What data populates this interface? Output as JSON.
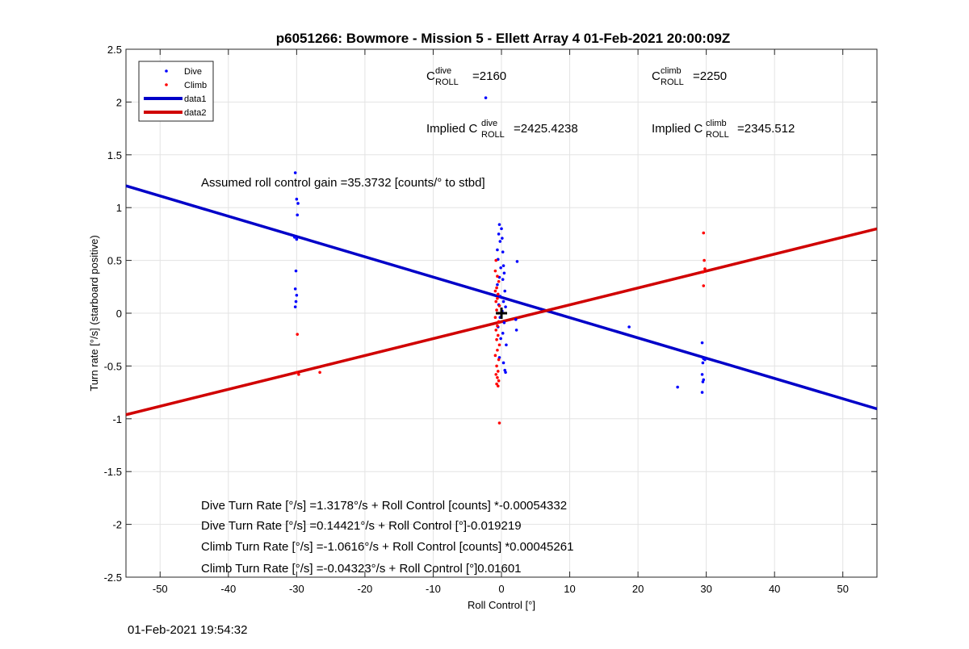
{
  "chart_data": {
    "type": "scatter",
    "title": "p6051266: Bowmore - Mission 5 - Ellett Array 4 01-Feb-2021 20:00:09Z",
    "xlabel": "Roll Control [°]",
    "ylabel": "Turn rate [°/s] (starboard positive)",
    "xlim": [
      -55,
      55
    ],
    "ylim": [
      -2.5,
      2.5
    ],
    "xticks": [
      -50,
      -40,
      -30,
      -20,
      -10,
      0,
      10,
      20,
      30,
      40,
      50
    ],
    "yticks": [
      2.5,
      2,
      1.5,
      1,
      0.5,
      0,
      -0.5,
      -1,
      -1.5,
      -2,
      -2.5
    ],
    "ytick_labels": [
      "2.5",
      "2",
      "1.5",
      "1",
      "0.5",
      "0",
      "-0.5",
      "-1",
      "-1.5",
      "-2",
      "-2.5"
    ],
    "grid": true,
    "legend_position": "top-left",
    "legend": [
      "Dive",
      "Climb",
      "data1",
      "data2"
    ],
    "series": [
      {
        "name": "Dive",
        "kind": "points",
        "color": "#0000ff",
        "points": [
          [
            -30.2,
            1.33
          ],
          [
            -30.0,
            1.08
          ],
          [
            -29.8,
            1.04
          ],
          [
            -29.9,
            0.93
          ],
          [
            -30.3,
            0.72
          ],
          [
            -30.0,
            0.7
          ],
          [
            -30.1,
            0.4
          ],
          [
            -30.2,
            0.23
          ],
          [
            -30.0,
            0.17
          ],
          [
            -30.1,
            0.11
          ],
          [
            -30.2,
            0.06
          ],
          [
            -2.3,
            2.04
          ],
          [
            -0.3,
            0.84
          ],
          [
            0.0,
            0.8
          ],
          [
            -0.4,
            0.75
          ],
          [
            0.1,
            0.71
          ],
          [
            -0.2,
            0.68
          ],
          [
            -0.6,
            0.6
          ],
          [
            0.2,
            0.58
          ],
          [
            -0.5,
            0.51
          ],
          [
            0.3,
            0.45
          ],
          [
            2.3,
            0.49
          ],
          [
            -0.1,
            0.43
          ],
          [
            0.4,
            0.38
          ],
          [
            -0.3,
            0.34
          ],
          [
            0.2,
            0.32
          ],
          [
            -0.6,
            0.27
          ],
          [
            0.5,
            0.21
          ],
          [
            -0.2,
            0.16
          ],
          [
            0.3,
            0.11
          ],
          [
            -0.4,
            0.08
          ],
          [
            0.6,
            0.06
          ],
          [
            0.1,
            0.02
          ],
          [
            -0.2,
            -0.04
          ],
          [
            0.4,
            -0.09
          ],
          [
            -0.5,
            -0.13
          ],
          [
            0.2,
            -0.19
          ],
          [
            -0.1,
            -0.24
          ],
          [
            0.7,
            -0.3
          ],
          [
            -0.3,
            -0.42
          ],
          [
            0.3,
            -0.47
          ],
          [
            0.5,
            -0.54
          ],
          [
            0.6,
            -0.56
          ],
          [
            2.2,
            -0.16
          ],
          [
            2.1,
            -0.06
          ],
          [
            18.7,
            -0.13
          ],
          [
            25.8,
            -0.7
          ],
          [
            29.4,
            -0.28
          ],
          [
            29.6,
            -0.43
          ],
          [
            29.5,
            -0.47
          ],
          [
            29.4,
            -0.58
          ],
          [
            29.6,
            -0.63
          ],
          [
            29.5,
            -0.65
          ],
          [
            29.4,
            -0.75
          ],
          [
            29.8,
            -0.44
          ]
        ]
      },
      {
        "name": "Climb",
        "kind": "points",
        "color": "#ff0000",
        "points": [
          [
            -29.9,
            -0.2
          ],
          [
            -30.0,
            -0.56
          ],
          [
            -29.7,
            -0.58
          ],
          [
            -26.6,
            -0.56
          ],
          [
            -0.8,
            0.5
          ],
          [
            -0.9,
            0.4
          ],
          [
            -0.6,
            0.35
          ],
          [
            -0.4,
            0.3
          ],
          [
            -0.7,
            0.24
          ],
          [
            -0.9,
            0.21
          ],
          [
            -0.5,
            0.18
          ],
          [
            -0.6,
            0.14
          ],
          [
            -0.8,
            0.11
          ],
          [
            -0.3,
            0.07
          ],
          [
            -0.7,
            0.03
          ],
          [
            -0.5,
            0.0
          ],
          [
            -0.9,
            -0.04
          ],
          [
            -0.4,
            -0.08
          ],
          [
            -0.6,
            -0.12
          ],
          [
            -0.8,
            -0.16
          ],
          [
            -0.5,
            -0.21
          ],
          [
            -0.7,
            -0.25
          ],
          [
            -0.3,
            -0.3
          ],
          [
            -0.6,
            -0.35
          ],
          [
            -0.9,
            -0.4
          ],
          [
            -0.4,
            -0.44
          ],
          [
            -0.7,
            -0.5
          ],
          [
            -0.5,
            -0.55
          ],
          [
            -0.8,
            -0.58
          ],
          [
            -0.6,
            -0.61
          ],
          [
            -0.4,
            -0.64
          ],
          [
            -0.7,
            -0.67
          ],
          [
            -0.5,
            -0.69
          ],
          [
            -0.3,
            -1.04
          ],
          [
            29.6,
            0.76
          ],
          [
            29.7,
            0.5
          ],
          [
            29.8,
            0.42
          ],
          [
            29.5,
            0.39
          ],
          [
            29.6,
            0.26
          ]
        ]
      },
      {
        "name": "data1",
        "kind": "line",
        "color": "#0000c8",
        "x": [
          -55,
          55
        ],
        "y": [
          1.2064,
          -0.906
        ]
      },
      {
        "name": "data2",
        "kind": "line",
        "color": "#d00000",
        "x": [
          -55,
          55
        ],
        "y": [
          -0.9614,
          0.7998
        ]
      }
    ],
    "origin_marker": [
      0,
      0
    ]
  },
  "annotations": {
    "c_dive": {
      "base": "C",
      "sup": "dive",
      "sub": "ROLL",
      "value": "=2160"
    },
    "c_climb": {
      "base": "C",
      "sup": "climb",
      "sub": "ROLL",
      "value": "=2250"
    },
    "implied_dive": {
      "prefix": "Implied C",
      "sup": "dive",
      "sub": "ROLL",
      "value": "=2425.4238"
    },
    "implied_climb": {
      "prefix": "Implied C",
      "sup": "climb",
      "sub": "ROLL",
      "value": "=2345.512"
    },
    "gain": "Assumed roll control gain =35.3732 [counts/° to stbd]",
    "eq1": "Dive Turn Rate [°/s] =1.3178°/s + Roll Control [counts] *-0.00054332",
    "eq2": "Dive Turn Rate [°/s] =0.14421°/s + Roll Control [°]-0.019219",
    "eq3": "Climb Turn Rate [°/s] =-1.0616°/s + Roll Control [counts] *0.00045261",
    "eq4": "Climb Turn Rate [°/s] =-0.04323°/s + Roll Control [°]0.01601"
  },
  "footer": {
    "timestamp": "01-Feb-2021 19:54:32"
  }
}
